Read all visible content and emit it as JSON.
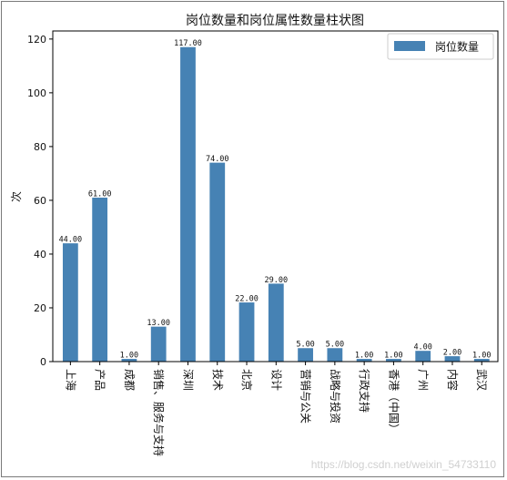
{
  "chart_data": {
    "type": "bar",
    "title": "岗位数量和岗位属性数量柱状图",
    "xlabel": "",
    "ylabel": "次",
    "ylim": [
      0,
      123
    ],
    "yticks": [
      0,
      20,
      40,
      60,
      80,
      100,
      120
    ],
    "categories": [
      "上海",
      "产品",
      "成都",
      "销售、服务与支持",
      "深圳",
      "技术",
      "北京",
      "设计",
      "营销与公关",
      "战略与投资",
      "行政支持",
      "香港（中国）",
      "广州",
      "内容",
      "武汉"
    ],
    "series": [
      {
        "name": "岗位数量",
        "values": [
          44,
          61,
          1,
          13,
          117,
          74,
          22,
          29,
          5,
          5,
          1,
          1,
          4,
          2,
          1
        ],
        "value_labels": [
          "44.00",
          "61.00",
          "1.00",
          "13.00",
          "117.00",
          "74.00",
          "22.00",
          "29.00",
          "5.00",
          "5.00",
          "1.00",
          "1.00",
          "4.00",
          "2.00",
          "1.00"
        ]
      }
    ],
    "bar_color": "#4682b4",
    "legend_position": "top-right",
    "grid": false
  },
  "watermark": "https://blog.csdn.net/weixin_54733110"
}
